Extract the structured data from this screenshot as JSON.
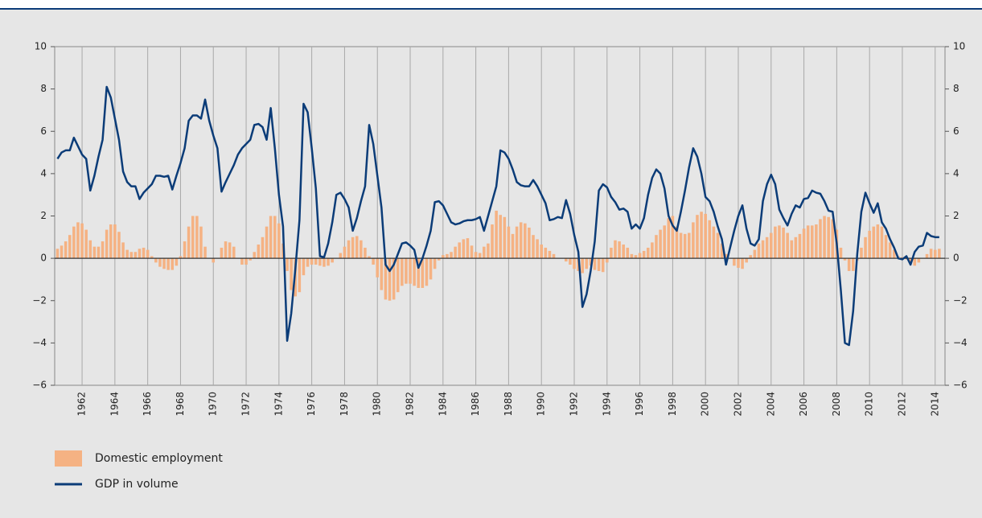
{
  "chart_data": {
    "type": "bar_line",
    "x": [
      1960.5,
      1960.75,
      1961,
      1961.25,
      1961.5,
      1961.75,
      1962,
      1962.25,
      1962.5,
      1962.75,
      1963,
      1963.25,
      1963.5,
      1963.75,
      1964,
      1964.25,
      1964.5,
      1964.75,
      1965,
      1965.25,
      1965.5,
      1965.75,
      1966,
      1966.25,
      1966.5,
      1966.75,
      1967,
      1967.25,
      1967.5,
      1967.75,
      1968,
      1968.25,
      1968.5,
      1968.75,
      1969,
      1969.25,
      1969.5,
      1969.75,
      1970,
      1970.25,
      1970.5,
      1970.75,
      1971,
      1971.25,
      1971.5,
      1971.75,
      1972,
      1972.25,
      1972.5,
      1972.75,
      1973,
      1973.25,
      1973.5,
      1973.75,
      1974,
      1974.25,
      1974.5,
      1974.75,
      1975,
      1975.25,
      1975.5,
      1975.75,
      1976,
      1976.25,
      1976.5,
      1976.75,
      1977,
      1977.25,
      1977.5,
      1977.75,
      1978,
      1978.25,
      1978.5,
      1978.75,
      1979,
      1979.25,
      1979.5,
      1979.75,
      1980,
      1980.25,
      1980.5,
      1980.75,
      1981,
      1981.25,
      1981.5,
      1981.75,
      1982,
      1982.25,
      1982.5,
      1982.75,
      1983,
      1983.25,
      1983.5,
      1983.75,
      1984,
      1984.25,
      1984.5,
      1984.75,
      1985,
      1985.25,
      1985.5,
      1985.75,
      1986,
      1986.25,
      1986.5,
      1986.75,
      1987,
      1987.25,
      1987.5,
      1987.75,
      1988,
      1988.25,
      1988.5,
      1988.75,
      1989,
      1989.25,
      1989.5,
      1989.75,
      1990,
      1990.25,
      1990.5,
      1990.75,
      1991,
      1991.25,
      1991.5,
      1991.75,
      1992,
      1992.25,
      1992.5,
      1992.75,
      1993,
      1993.25,
      1993.5,
      1993.75,
      1994,
      1994.25,
      1994.5,
      1994.75,
      1995,
      1995.25,
      1995.5,
      1995.75,
      1996,
      1996.25,
      1996.5,
      1996.75,
      1997,
      1997.25,
      1997.5,
      1997.75,
      1998,
      1998.25,
      1998.5,
      1998.75,
      1999,
      1999.25,
      1999.5,
      1999.75,
      2000,
      2000.25,
      2000.5,
      2000.75,
      2001,
      2001.25,
      2001.5,
      2001.75,
      2002,
      2002.25,
      2002.5,
      2002.75,
      2003,
      2003.25,
      2003.5,
      2003.75,
      2004,
      2004.25,
      2004.5,
      2004.75,
      2005,
      2005.25,
      2005.5,
      2005.75,
      2006,
      2006.25,
      2006.5,
      2006.75,
      2007,
      2007.25,
      2007.5,
      2007.75,
      2008,
      2008.25,
      2008.5,
      2008.75,
      2009,
      2009.25,
      2009.5,
      2009.75,
      2010,
      2010.25,
      2010.5,
      2010.75,
      2011,
      2011.25,
      2011.5,
      2011.75,
      2012,
      2012.25,
      2012.5,
      2012.75,
      2013,
      2013.25,
      2013.5,
      2013.75,
      2014,
      2014.25
    ],
    "series": [
      {
        "name": "Domestic employment",
        "kind": "bar",
        "color": "#f5b283",
        "values": [
          0.45,
          0.6,
          0.8,
          1.1,
          1.5,
          1.7,
          1.65,
          1.35,
          0.85,
          0.55,
          0.55,
          0.8,
          1.35,
          1.6,
          1.6,
          1.25,
          0.75,
          0.4,
          0.3,
          0.3,
          0.45,
          0.5,
          0.4,
          0.1,
          -0.2,
          -0.4,
          -0.5,
          -0.55,
          -0.55,
          -0.35,
          0.1,
          0.8,
          1.5,
          2.0,
          2.0,
          1.5,
          0.55,
          0.0,
          -0.2,
          0.0,
          0.5,
          0.8,
          0.75,
          0.55,
          0.0,
          -0.3,
          -0.3,
          -0.1,
          0.3,
          0.65,
          1.0,
          1.5,
          2.0,
          2.0,
          1.65,
          0.7,
          -0.6,
          -1.5,
          -1.8,
          -1.6,
          -0.8,
          -0.4,
          -0.3,
          -0.3,
          -0.35,
          -0.4,
          -0.35,
          -0.2,
          0.0,
          0.25,
          0.55,
          0.85,
          1.0,
          1.05,
          0.85,
          0.5,
          0.1,
          -0.3,
          -0.9,
          -1.5,
          -1.95,
          -2.0,
          -1.95,
          -1.6,
          -1.3,
          -1.2,
          -1.2,
          -1.3,
          -1.4,
          -1.4,
          -1.3,
          -1.0,
          -0.5,
          -0.1,
          0.15,
          0.2,
          0.3,
          0.55,
          0.75,
          0.9,
          0.95,
          0.6,
          0.3,
          0.25,
          0.55,
          0.7,
          1.6,
          2.25,
          2.05,
          1.95,
          1.5,
          1.15,
          1.5,
          1.7,
          1.65,
          1.45,
          1.1,
          0.9,
          0.65,
          0.5,
          0.35,
          0.2,
          0.0,
          0.0,
          -0.15,
          -0.3,
          -0.5,
          -0.6,
          -0.7,
          -0.5,
          -0.35,
          -0.55,
          -0.6,
          -0.65,
          -0.2,
          0.5,
          0.85,
          0.8,
          0.65,
          0.5,
          0.2,
          0.15,
          0.25,
          0.35,
          0.5,
          0.75,
          1.1,
          1.35,
          1.55,
          1.9,
          2.0,
          1.5,
          1.2,
          1.15,
          1.2,
          1.7,
          2.05,
          2.2,
          2.1,
          1.8,
          1.5,
          1.2,
          0.7,
          0.2,
          0.0,
          -0.35,
          -0.45,
          -0.5,
          -0.2,
          0.15,
          0.4,
          0.7,
          0.85,
          1.0,
          1.2,
          1.5,
          1.55,
          1.45,
          1.2,
          0.85,
          1.0,
          1.15,
          1.4,
          1.55,
          1.55,
          1.6,
          1.85,
          2.0,
          1.95,
          1.85,
          1.35,
          0.5,
          -0.1,
          -0.6,
          -0.6,
          -0.1,
          0.5,
          1.0,
          1.3,
          1.5,
          1.6,
          1.5,
          1.1,
          0.75,
          0.4,
          0.1,
          0.05,
          -0.05,
          -0.25,
          -0.35,
          -0.2,
          0.0,
          0.2,
          0.45,
          0.4,
          0.45
        ]
      },
      {
        "name": "GDP in volume",
        "kind": "line",
        "color": "#0b3c78",
        "values": [
          4.7,
          5.0,
          5.1,
          5.1,
          5.7,
          5.3,
          4.9,
          4.7,
          3.2,
          3.9,
          4.8,
          5.6,
          8.1,
          7.6,
          6.6,
          5.6,
          4.1,
          3.6,
          3.4,
          3.4,
          2.8,
          3.1,
          3.3,
          3.5,
          3.9,
          3.9,
          3.85,
          3.9,
          3.25,
          3.9,
          4.5,
          5.2,
          6.5,
          6.75,
          6.75,
          6.6,
          7.5,
          6.5,
          5.8,
          5.2,
          3.15,
          3.6,
          4.0,
          4.4,
          4.9,
          5.2,
          5.4,
          5.6,
          6.3,
          6.35,
          6.2,
          5.6,
          7.1,
          5.2,
          3.0,
          1.5,
          -3.9,
          -2.6,
          -0.5,
          1.8,
          7.3,
          6.9,
          5.2,
          3.3,
          0.1,
          0.05,
          0.7,
          1.7,
          3.0,
          3.1,
          2.8,
          2.4,
          1.3,
          1.9,
          2.7,
          3.4,
          6.3,
          5.4,
          3.9,
          2.4,
          -0.3,
          -0.6,
          -0.3,
          0.2,
          0.7,
          0.75,
          0.6,
          0.4,
          -0.45,
          0.0,
          0.6,
          1.3,
          2.65,
          2.7,
          2.5,
          2.1,
          1.7,
          1.6,
          1.65,
          1.75,
          1.8,
          1.8,
          1.85,
          1.95,
          1.3,
          2.0,
          2.7,
          3.4,
          5.1,
          5.0,
          4.7,
          4.2,
          3.6,
          3.45,
          3.4,
          3.4,
          3.7,
          3.4,
          3.0,
          2.6,
          1.8,
          1.85,
          1.95,
          1.9,
          2.75,
          2.1,
          1.1,
          0.3,
          -2.3,
          -1.7,
          -0.6,
          0.8,
          3.2,
          3.5,
          3.35,
          2.9,
          2.65,
          2.3,
          2.35,
          2.2,
          1.4,
          1.6,
          1.4,
          1.9,
          3.0,
          3.8,
          4.2,
          4.0,
          3.3,
          2.0,
          1.55,
          1.3,
          2.2,
          3.2,
          4.3,
          5.2,
          4.8,
          4.0,
          2.9,
          2.7,
          2.2,
          1.5,
          0.9,
          -0.3,
          0.5,
          1.3,
          2.0,
          2.5,
          1.4,
          0.7,
          0.6,
          0.9,
          2.7,
          3.5,
          3.95,
          3.5,
          2.3,
          1.9,
          1.55,
          2.1,
          2.5,
          2.4,
          2.8,
          2.85,
          3.2,
          3.1,
          3.05,
          2.7,
          2.25,
          2.2,
          0.7,
          -1.5,
          -4.0,
          -4.1,
          -2.5,
          0.2,
          2.2,
          3.1,
          2.6,
          2.15,
          2.6,
          1.7,
          1.4,
          0.9,
          0.5,
          0.0,
          -0.05,
          0.1,
          -0.3,
          0.3,
          0.55,
          0.6,
          1.2,
          1.05,
          1.0,
          1.0
        ]
      }
    ],
    "xlim": [
      1960.33,
      2014.6
    ],
    "xticks": [
      1962,
      1964,
      1966,
      1968,
      1970,
      1972,
      1974,
      1976,
      1978,
      1980,
      1982,
      1984,
      1986,
      1988,
      1990,
      1992,
      1994,
      1996,
      1998,
      2000,
      2002,
      2004,
      2006,
      2008,
      2010,
      2012,
      2014
    ],
    "ylim": [
      -6,
      10
    ],
    "yticks": [
      {
        "value": -6,
        "label": "−6"
      },
      {
        "value": -4,
        "label": "−4"
      },
      {
        "value": -2,
        "label": "−2"
      },
      0,
      2,
      4,
      6,
      8,
      10
    ],
    "grid": true,
    "legend": "bottom-left"
  }
}
